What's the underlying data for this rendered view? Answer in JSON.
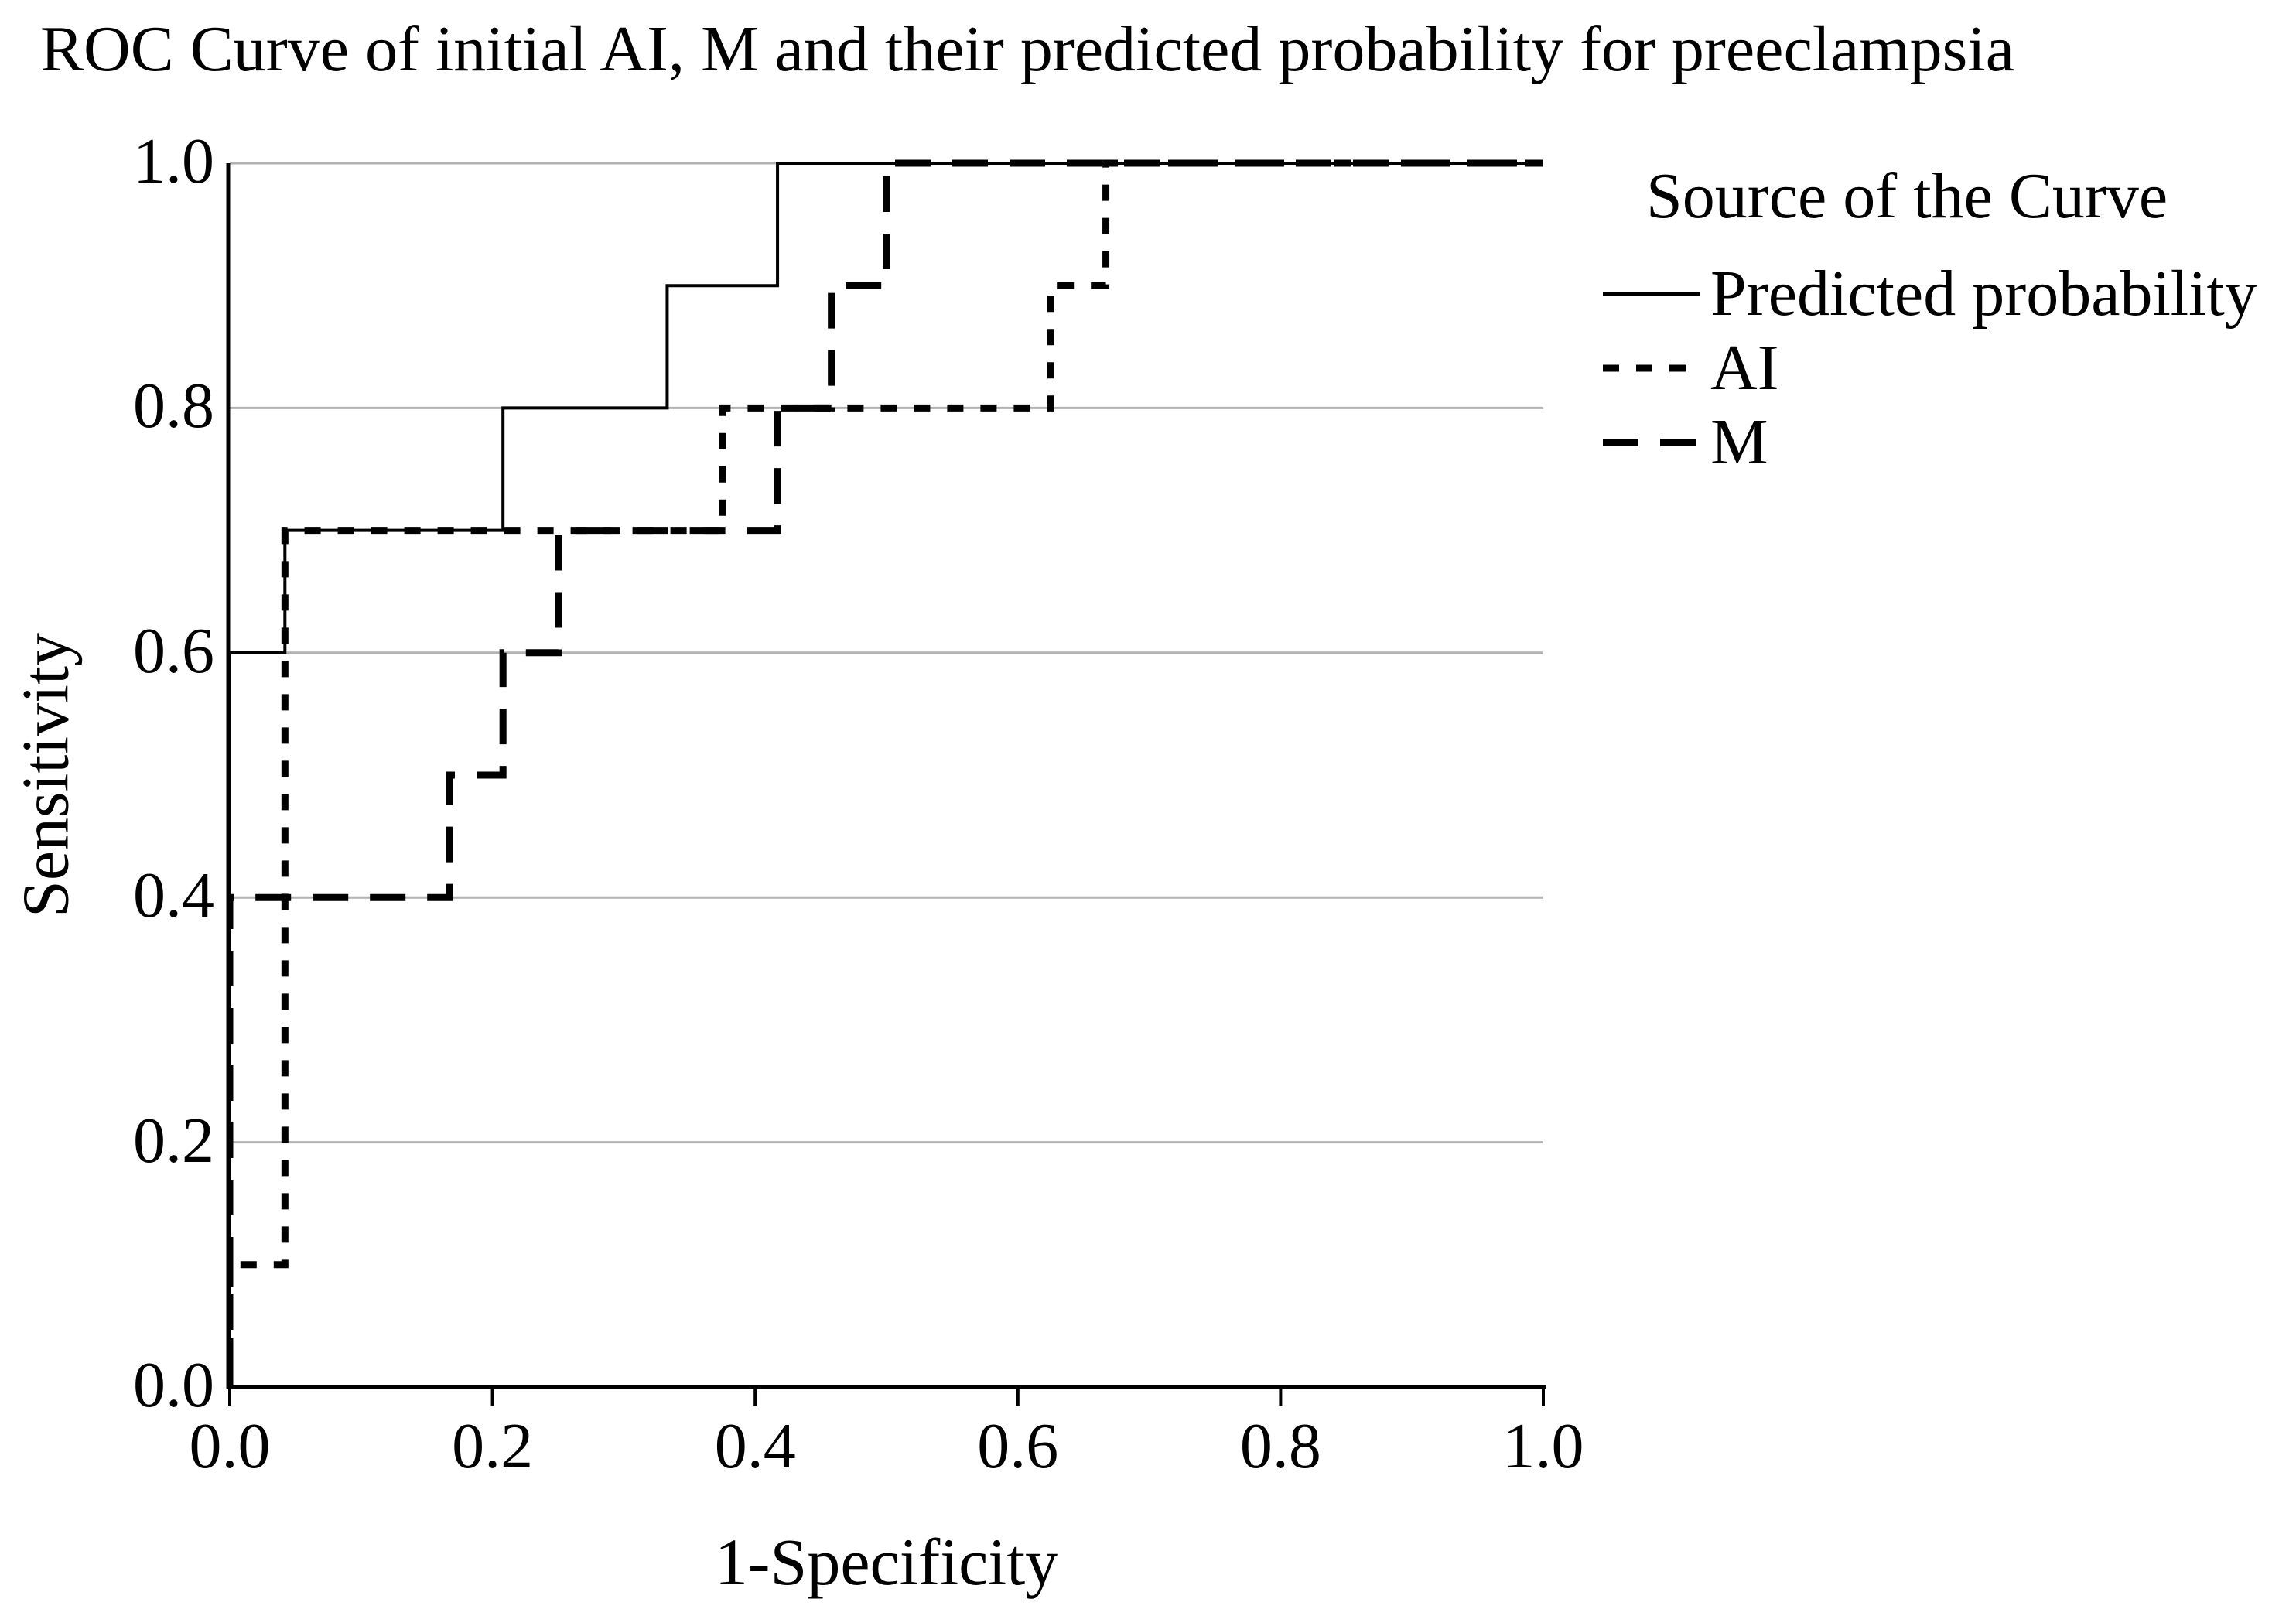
{
  "title": "ROC Curve of initial AI, M and their predicted probability for preeclampsia",
  "axes": {
    "x_label": "1-Specificity",
    "y_label": "Sensitivity",
    "x_ticks": [
      "0.0",
      "0.2",
      "0.4",
      "0.6",
      "0.8",
      "1.0"
    ],
    "y_ticks": [
      "0.0",
      "0.2",
      "0.4",
      "0.6",
      "0.8",
      "1.0"
    ]
  },
  "legend": {
    "title": "Source of the Curve",
    "items": [
      {
        "label": "Predicted probability",
        "series": "predicted_probability",
        "line_style": "solid"
      },
      {
        "label": "AI",
        "series": "ai",
        "line_style": "short-dash"
      },
      {
        "label": "M",
        "series": "m",
        "line_style": "long-dash"
      }
    ]
  },
  "colors": {
    "line": "#000000",
    "axis": "#000000",
    "gridline": "#b2b2b2",
    "text": "#000000",
    "background": "#ffffff"
  },
  "chart_data": {
    "type": "line",
    "subtype": "roc-step-curves",
    "title": "ROC Curve of initial AI, M and their predicted probability for preeclampsia",
    "xlabel": "1-Specificity",
    "ylabel": "Sensitivity",
    "xlim": [
      0,
      1
    ],
    "ylim": [
      0,
      1
    ],
    "x_tick_values": [
      0,
      0.2,
      0.4,
      0.6,
      0.8,
      1.0
    ],
    "x_tick_labels": [
      "0.0",
      "0.2",
      "0.4",
      "0.6",
      "0.8",
      "1.0"
    ],
    "y_tick_values": [
      0,
      0.2,
      0.4,
      0.6,
      0.8,
      1.0
    ],
    "y_tick_labels": [
      "0.0",
      "0.2",
      "0.4",
      "0.6",
      "0.8",
      "1.0"
    ],
    "grid_y_values": [
      0.2,
      0.4,
      0.6,
      0.8,
      1.0
    ],
    "grid_on": true,
    "legend_position": "upper-right-outside",
    "series": [
      {
        "key": "predicted_probability",
        "name": "Predicted probability",
        "line_style": "solid",
        "stroke_width": 4,
        "dash": null,
        "points": [
          [
            0,
            0
          ],
          [
            0,
            0.6
          ],
          [
            0.042,
            0.6
          ],
          [
            0.042,
            0.7
          ],
          [
            0.208,
            0.7
          ],
          [
            0.208,
            0.8
          ],
          [
            0.333,
            0.8
          ],
          [
            0.333,
            0.9
          ],
          [
            0.417,
            0.9
          ],
          [
            0.417,
            1.0
          ],
          [
            1.0,
            1.0
          ]
        ]
      },
      {
        "key": "m",
        "name": "M",
        "line_style": "long-dash",
        "stroke_width": 9,
        "dash": [
          46,
          28
        ],
        "points": [
          [
            0,
            0
          ],
          [
            0,
            0.4
          ],
          [
            0.167,
            0.4
          ],
          [
            0.167,
            0.5
          ],
          [
            0.208,
            0.5
          ],
          [
            0.208,
            0.6
          ],
          [
            0.25,
            0.6
          ],
          [
            0.25,
            0.7
          ],
          [
            0.417,
            0.7
          ],
          [
            0.417,
            0.8
          ],
          [
            0.458,
            0.8
          ],
          [
            0.458,
            0.9
          ],
          [
            0.5,
            0.9
          ],
          [
            0.5,
            1.0
          ],
          [
            1.0,
            1.0
          ]
        ]
      },
      {
        "key": "ai",
        "name": "AI",
        "line_style": "short-dash",
        "stroke_width": 9,
        "dash": [
          21,
          22
        ],
        "points": [
          [
            0,
            0
          ],
          [
            0,
            0.1
          ],
          [
            0.042,
            0.1
          ],
          [
            0.042,
            0.7
          ],
          [
            0.375,
            0.7
          ],
          [
            0.375,
            0.8
          ],
          [
            0.625,
            0.8
          ],
          [
            0.625,
            0.9
          ],
          [
            0.667,
            0.9
          ],
          [
            0.667,
            1.0
          ],
          [
            1.0,
            1.0
          ]
        ]
      }
    ]
  }
}
